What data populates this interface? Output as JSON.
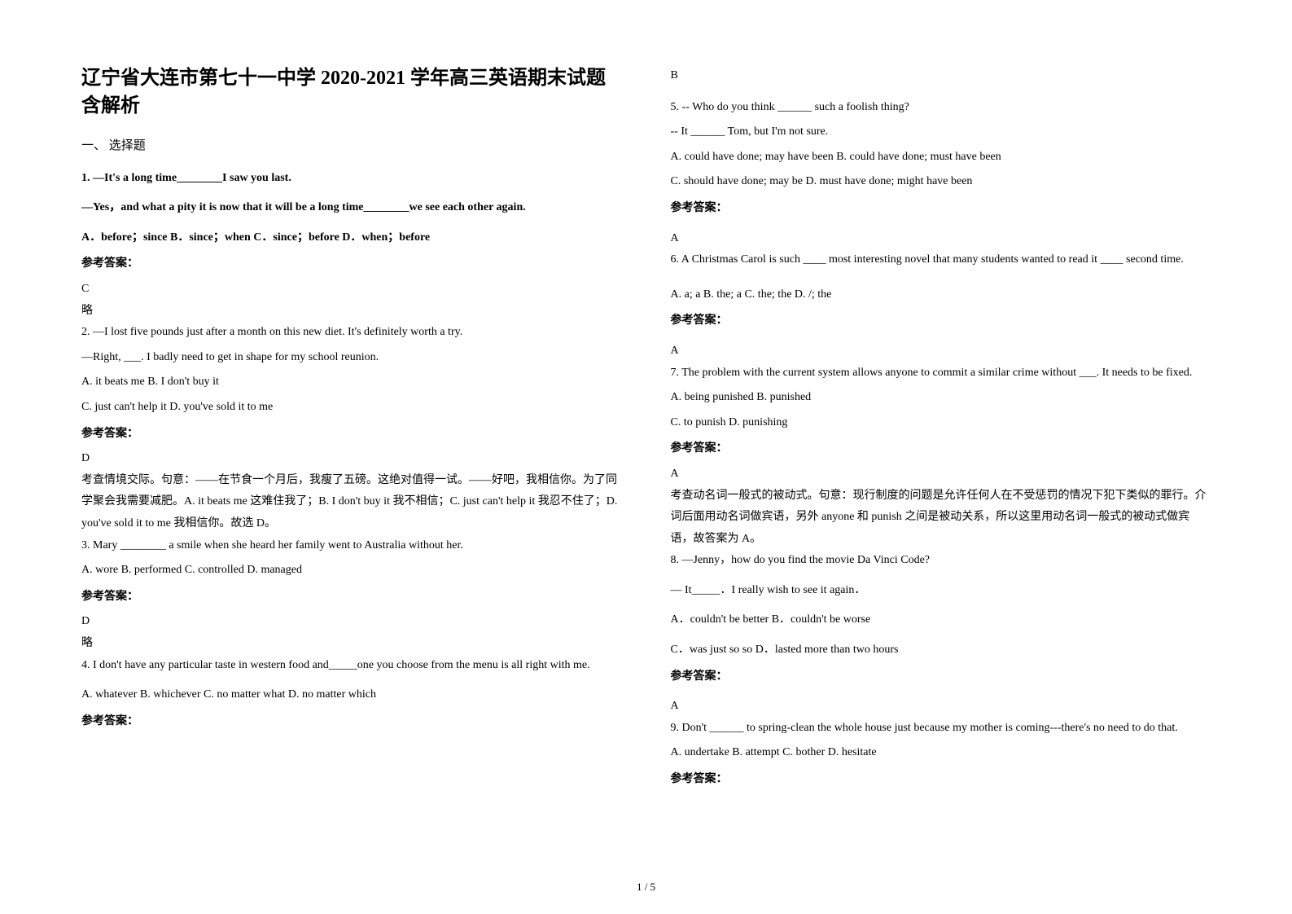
{
  "title": "辽宁省大连市第七十一中学 2020-2021 学年高三英语期末试题含解析",
  "section1": "一、 选择题",
  "q1": {
    "line1": "1. —It's a long time________I saw you last.",
    "line2": "—Yes，and what a pity it is now that it will be a long time________we see each other again.",
    "opts": "A．before；since   B．since；when   C．since；before   D．when；before",
    "ansLabel": "参考答案：",
    "ans": "C",
    "note": "略"
  },
  "q2": {
    "line1": "2. —I lost five pounds just after a month on this new diet. It's definitely worth a try.",
    "line2": "—Right, ___. I badly need to get in shape for my school reunion.",
    "optA": "A. it beats me   B. I don't buy it",
    "optC": "C. just can't help it   D. you've sold it to me",
    "ansLabel": "参考答案：",
    "ans": "D",
    "exp1": "考查情境交际。句意：——在节食一个月后，我瘦了五磅。这绝对值得一试。——好吧，我相信你。为了同学聚会我需要减肥。A. it beats me 这难住我了；B. I don't buy it 我不相信；C. just can't help it 我忍不住了；D. you've sold it to me 我相信你。故选 D。"
  },
  "q3": {
    "line1": "3. Mary ________ a smile when she heard her family went to Australia without her.",
    "opts": "    A. wore               B. performed            C. controlled      D. managed",
    "ansLabel": "参考答案：",
    "ans": "D",
    "note": "略"
  },
  "q4": {
    "line1": "4. I don't have any particular taste in western food and_____one you choose from the menu is all right with me.",
    "opts": "A. whatever   B. whichever   C. no matter what   D. no matter which",
    "ansLabel": "参考答案：",
    "ans": "B"
  },
  "q5": {
    "line1": "5. -- Who do you think ______ such a foolish thing?",
    "line2": "   -- It ______ Tom, but I'm not sure.",
    "optA": "   A. could have done; may have been       B. could have done; must have been",
    "optC": "   C. should have done; may be                      D. must have done; might have been",
    "ansLabel": "参考答案：",
    "ans": "A"
  },
  "q6": {
    "line1": "6. A Christmas Carol is such ____ most interesting novel that many students wanted to read it ____ second time.",
    "opts": "A. a; a        B. the; a              C. the; the                D. /; the",
    "ansLabel": "参考答案：",
    "ans": "A"
  },
  "q7": {
    "line1": "7. The problem with the current system allows anyone to commit a similar crime without ___. It needs to be fixed.",
    "optA": "A. being punished   B. punished",
    "optC": "C. to punish   D. punishing",
    "ansLabel": "参考答案：",
    "ans": "A",
    "exp": "考查动名词一般式的被动式。句意：现行制度的问题是允许任何人在不受惩罚的情况下犯下类似的罪行。介词后面用动名词做宾语，另外 anyone 和 punish 之间是被动关系，所以这里用动名词一般式的被动式做宾语，故答案为 A。"
  },
  "q8": {
    "line1": "8. —Jenny，how do you find the movie Da Vinci Code?",
    "line2": "— It_____．I really wish to see it again．",
    "optA": "    A．couldn't be better                               B．couldn't be worse",
    "optC": "    C．was just so so                                     D．lasted more than two hours",
    "ansLabel": "参考答案：",
    "ans": "A"
  },
  "q9": {
    "line1": "9. Don't ______ to spring-clean the whole house just because my mother is coming---there's no need to do that.",
    "opts": "A. undertake               B. attempt                     C. bother                      D. hesitate",
    "ansLabel": "参考答案："
  },
  "pageNum": "1 / 5"
}
